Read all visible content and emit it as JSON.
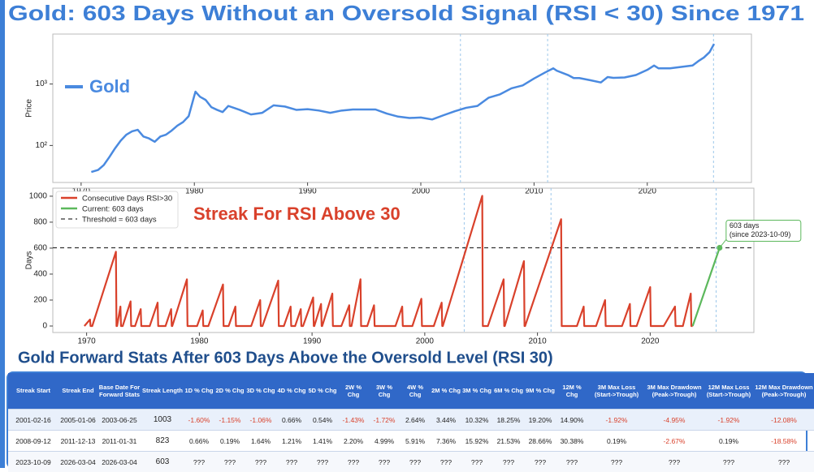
{
  "title": "Gold: 603 Days Without an Oversold Signal (RSI < 30) Since 1971",
  "chart_data": [
    {
      "type": "line",
      "yscale": "log",
      "ylabel": "Price",
      "legend": "upper left",
      "xlim": [
        1967.5,
        2029.2
      ],
      "ylim": [
        25,
        6500
      ],
      "xticks": [
        1970,
        1980,
        1990,
        2000,
        2010,
        2020
      ],
      "yticks": [
        {
          "value": 100,
          "label": "10²"
        },
        {
          "value": 1000,
          "label": "10³"
        }
      ],
      "vlines": [
        2003.5,
        2011.2,
        2025.85
      ],
      "series": [
        {
          "name": "Gold",
          "color": "#4a8ae0",
          "x": [
            1970.9,
            1971.5,
            1972,
            1972.5,
            1973,
            1973.5,
            1974,
            1974.5,
            1975,
            1975.5,
            1976,
            1976.5,
            1977,
            1977.5,
            1978,
            1978.5,
            1979,
            1979.5,
            1980,
            1980.1,
            1980.5,
            1981,
            1981.5,
            1982,
            1982.5,
            1983,
            1984,
            1985,
            1986,
            1987,
            1988,
            1989,
            1990,
            1991,
            1992,
            1993,
            1994,
            1995,
            1996,
            1997,
            1998,
            1999,
            2000,
            2001,
            2002,
            2003,
            2004,
            2005,
            2006,
            2007,
            2008,
            2009,
            2010,
            2011,
            2011.7,
            2012,
            2013,
            2013.5,
            2014,
            2015,
            2015.9,
            2016.5,
            2017,
            2018,
            2019,
            2020,
            2020.6,
            2021,
            2022,
            2023,
            2024,
            2024.5,
            2025,
            2025.5,
            2025.9
          ],
          "values": [
            37,
            40,
            48,
            65,
            90,
            120,
            150,
            170,
            180,
            140,
            130,
            115,
            140,
            150,
            175,
            210,
            240,
            300,
            650,
            750,
            620,
            550,
            420,
            380,
            350,
            440,
            380,
            320,
            340,
            450,
            430,
            380,
            390,
            370,
            340,
            370,
            385,
            385,
            385,
            330,
            295,
            280,
            285,
            265,
            310,
            360,
            410,
            440,
            600,
            680,
            850,
            950,
            1230,
            1550,
            1800,
            1650,
            1400,
            1250,
            1250,
            1150,
            1060,
            1300,
            1260,
            1280,
            1400,
            1700,
            2000,
            1800,
            1800,
            1900,
            2000,
            2350,
            2700,
            3300,
            4500
          ]
        }
      ]
    },
    {
      "type": "line",
      "ylabel": "Days",
      "subtitle": "Streak For RSI Above 30",
      "legend": "upper left",
      "xlim": [
        1967,
        2029.2
      ],
      "ylim": [
        -50,
        1062
      ],
      "xticks": [
        1970,
        1980,
        1990,
        2000,
        2010,
        2020
      ],
      "yticks": [
        0,
        200,
        400,
        600,
        800,
        1000
      ],
      "vlines": [
        2003.5,
        2011.2,
        2025.85
      ],
      "series": [
        {
          "name": "Consecutive Days RSI>30",
          "color": "#d9412b",
          "x": [
            1969.8,
            1970.3,
            1970.35,
            1970.5,
            1972.6,
            1972.65,
            1972.7,
            1973.0,
            1973.05,
            1973.2,
            1973.9,
            1973.95,
            1974.3,
            1974.8,
            1974.85,
            1975.6,
            1976.3,
            1976.35,
            1977.0,
            1977.5,
            1977.55,
            1977.6,
            1978.9,
            1978.95,
            1979.8,
            1980.3,
            1980.35,
            1980.8,
            1982.1,
            1982.15,
            1982.6,
            1983.2,
            1983.25,
            1984.6,
            1985.4,
            1985.45,
            1985.6,
            1987.0,
            1987.05,
            1987.5,
            1988.1,
            1988.15,
            1988.5,
            1989.0,
            1989.05,
            1989.2,
            1990.1,
            1990.15,
            1990.2,
            1990.8,
            1990.85,
            1990.9,
            1991.8,
            1991.85,
            1992.6,
            1993.3,
            1993.35,
            1993.5,
            1994.3,
            1994.35,
            1994.9,
            1995.5,
            1995.55,
            1997.4,
            1998.0,
            1998.05,
            1998.9,
            1999.7,
            1999.75,
            2000.8,
            2001.5,
            2001.55,
            2001.6,
            2005.1,
            2005.15,
            2005.6,
            2007.0,
            2007.05,
            2007.1,
            2008.8,
            2008.85,
            2008.9,
            2012.1,
            2012.15,
            2013.5,
            2014.1,
            2014.15,
            2015.2,
            2016.0,
            2016.05,
            2017.5,
            2018.2,
            2018.25,
            2018.8,
            2020.0,
            2020.05,
            2021.2,
            2022.2,
            2022.25,
            2022.9,
            2023.6,
            2023.65,
            2023.77
          ],
          "values": [
            0,
            50,
            0,
            0,
            572,
            0,
            0,
            150,
            0,
            0,
            190,
            0,
            0,
            130,
            0,
            0,
            180,
            0,
            0,
            130,
            0,
            0,
            360,
            0,
            0,
            120,
            0,
            0,
            320,
            0,
            0,
            150,
            0,
            0,
            200,
            0,
            0,
            350,
            0,
            0,
            150,
            0,
            0,
            130,
            0,
            0,
            220,
            0,
            0,
            170,
            0,
            0,
            250,
            0,
            0,
            160,
            0,
            0,
            360,
            0,
            0,
            160,
            0,
            0,
            150,
            0,
            0,
            210,
            0,
            0,
            180,
            0,
            0,
            1003,
            0,
            0,
            360,
            0,
            0,
            500,
            0,
            0,
            823,
            0,
            0,
            150,
            0,
            0,
            200,
            0,
            0,
            170,
            0,
            0,
            300,
            0,
            0,
            150,
            0,
            0,
            250,
            0,
            0
          ]
        },
        {
          "name": "Current: 603 days",
          "color": "#5cb85c",
          "x": [
            2023.77,
            2026.16
          ],
          "values": [
            0,
            603
          ]
        }
      ],
      "hlines": [
        {
          "name": "Threshold = 603 days",
          "value": 603,
          "color": "#333333"
        }
      ],
      "annotation": {
        "lines": [
          "603 days",
          "(since 2023-10-09)"
        ]
      }
    }
  ],
  "table": {
    "title": "Gold Forward Stats After 603 Days Above the Oversold Level (RSI 30)",
    "columns": [
      "Streak Start",
      "Streak End",
      "Base Date For Forward Stats",
      "Streak Length",
      "1D % Chg",
      "2D % Chg",
      "3D % Chg",
      "4D % Chg",
      "5D % Chg",
      "2W % Chg",
      "3W % Chg",
      "4W % Chg",
      "2M % Chg",
      "3M % Chg",
      "6M % Chg",
      "9M % Chg",
      "12M % Chg",
      "3M Max Loss (Start->Trough)",
      "3M Max Drawdown (Peak->Trough)",
      "12M Max Loss (Start->Trough)",
      "12M Max Drawdown (Peak->Trough)"
    ],
    "rows": [
      [
        "2001-02-16",
        "2005-01-06",
        "2003-06-25",
        "1003",
        "-1.60%",
        "-1.15%",
        "-1.06%",
        "0.66%",
        "0.54%",
        "-1.43%",
        "-1.72%",
        "2.64%",
        "3.44%",
        "10.32%",
        "18.25%",
        "19.20%",
        "14.90%",
        "-1.92%",
        "-4.95%",
        "-1.92%",
        "-12.08%"
      ],
      [
        "2008-09-12",
        "2011-12-13",
        "2011-01-31",
        "823",
        "0.66%",
        "0.19%",
        "1.64%",
        "1.21%",
        "1.41%",
        "2.20%",
        "4.99%",
        "5.91%",
        "7.36%",
        "15.92%",
        "21.53%",
        "28.66%",
        "30.38%",
        "0.19%",
        "-2.67%",
        "0.19%",
        "-18.58%"
      ],
      [
        "2023-10-09",
        "2026-03-04",
        "2026-03-04",
        "603",
        "???",
        "???",
        "???",
        "???",
        "???",
        "???",
        "???",
        "???",
        "???",
        "???",
        "???",
        "???",
        "???",
        "???",
        "???",
        "???",
        "???"
      ]
    ]
  }
}
